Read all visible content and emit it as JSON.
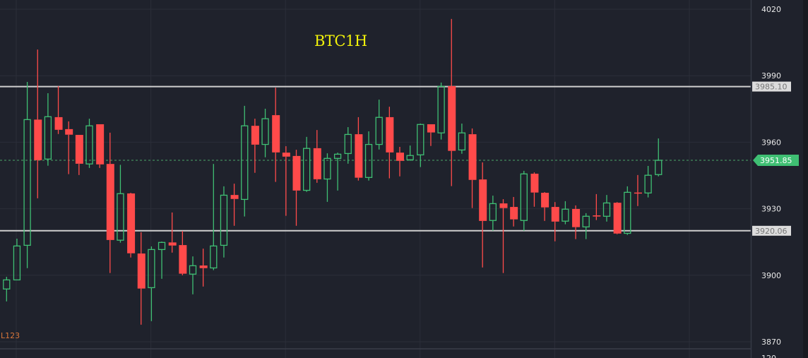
{
  "chart_data": {
    "type": "candlestick",
    "title": "BTC1H",
    "study_label": "L123",
    "sub_panel_tick": "120",
    "yticks": [
      4020,
      3990,
      3960,
      3930,
      3900,
      3870
    ],
    "ylim": [
      3866,
      4024
    ],
    "grid": true,
    "colors": {
      "background": "#1f222c",
      "up": "#3fbf73",
      "down": "#ff4a4a",
      "grid": "#2b2e39",
      "level_line": "#cfcfcf",
      "title": "#f2f20a",
      "study": "#d9763a",
      "last_price": "#3fbf73"
    },
    "levels": [
      {
        "value": 3985.1,
        "label": "3985.10"
      },
      {
        "value": 3920.06,
        "label": "3920.06"
      }
    ],
    "last_price": {
      "value": 3951.85,
      "label": "3951.85"
    },
    "candles": [
      [
        3893.8,
        3899.3,
        3888.2,
        3897.9
      ],
      [
        3897.9,
        3916.5,
        3897.9,
        3913.2
      ],
      [
        3913.5,
        3987.2,
        3903.2,
        3970.2
      ],
      [
        3970.2,
        4001.8,
        3934.7,
        3951.9
      ],
      [
        3952.4,
        3982.1,
        3949.4,
        3971.5
      ],
      [
        3971.3,
        3985.3,
        3963.7,
        3965.6
      ],
      [
        3965.9,
        3969.4,
        3945.6,
        3963.4
      ],
      [
        3963.3,
        3963.3,
        3945.2,
        3950.3
      ],
      [
        3950.2,
        3970.6,
        3948.4,
        3967.4
      ],
      [
        3968.1,
        3968.1,
        3948.4,
        3950.0
      ],
      [
        3950.2,
        3964.3,
        3901.0,
        3915.9
      ],
      [
        3915.8,
        3949.8,
        3914.7,
        3936.8
      ],
      [
        3936.9,
        3937.2,
        3908.0,
        3909.9
      ],
      [
        3909.8,
        3919.4,
        3877.7,
        3894.0
      ],
      [
        3894.4,
        3913.0,
        3879.3,
        3911.6
      ],
      [
        3911.6,
        3915.2,
        3898.4,
        3914.8
      ],
      [
        3914.8,
        3928.3,
        3910.2,
        3913.4
      ],
      [
        3913.6,
        3920.0,
        3900.0,
        3900.7
      ],
      [
        3900.5,
        3908.5,
        3891.4,
        3904.3
      ],
      [
        3904.4,
        3912.0,
        3894.9,
        3903.2
      ],
      [
        3903.3,
        3950.2,
        3902.3,
        3913.2
      ],
      [
        3913.5,
        3940.1,
        3908.0,
        3936.1
      ],
      [
        3936.2,
        3941.3,
        3922.3,
        3934.4
      ],
      [
        3934.2,
        3976.4,
        3926.5,
        3967.4
      ],
      [
        3967.4,
        3970.6,
        3946.2,
        3958.9
      ],
      [
        3959.0,
        3975.1,
        3953.2,
        3970.6
      ],
      [
        3972.2,
        3984.6,
        3942.1,
        3955.4
      ],
      [
        3955.3,
        3958.2,
        3926.8,
        3953.5
      ],
      [
        3953.8,
        3956.6,
        3922.3,
        3938.2
      ],
      [
        3938.3,
        3962.4,
        3937.6,
        3957.2
      ],
      [
        3957.3,
        3965.5,
        3941.7,
        3943.3
      ],
      [
        3943.4,
        3955.0,
        3933.1,
        3952.7
      ],
      [
        3952.7,
        3955.3,
        3938.2,
        3954.6
      ],
      [
        3954.9,
        3966.8,
        3950.3,
        3963.5
      ],
      [
        3963.6,
        3971.3,
        3942.7,
        3944.0
      ],
      [
        3944.1,
        3964.9,
        3942.7,
        3959.0
      ],
      [
        3959.0,
        3979.2,
        3956.7,
        3971.2
      ],
      [
        3971.3,
        3976.0,
        3943.7,
        3955.4
      ],
      [
        3955.3,
        3957.9,
        3944.6,
        3951.6
      ],
      [
        3952.1,
        3958.5,
        3951.6,
        3954.0
      ],
      [
        3954.3,
        3968.4,
        3948.8,
        3968.0
      ],
      [
        3968.1,
        3968.1,
        3958.3,
        3964.4
      ],
      [
        3964.2,
        3986.9,
        3961.2,
        3985.2
      ],
      [
        3985.3,
        4015.6,
        3940.2,
        3956.1
      ],
      [
        3956.5,
        3968.4,
        3954.8,
        3964.2
      ],
      [
        3963.6,
        3966.2,
        3930.3,
        3943.0
      ],
      [
        3943.2,
        3950.9,
        3903.5,
        3924.5
      ],
      [
        3924.7,
        3935.9,
        3920.1,
        3932.3
      ],
      [
        3932.4,
        3934.3,
        3901.0,
        3930.3
      ],
      [
        3930.8,
        3935.3,
        3922.0,
        3925.2
      ],
      [
        3924.7,
        3947.1,
        3920.1,
        3945.7
      ],
      [
        3945.8,
        3946.4,
        3930.9,
        3937.3
      ],
      [
        3937.2,
        3937.5,
        3924.5,
        3930.6
      ],
      [
        3930.8,
        3933.0,
        3915.3,
        3924.2
      ],
      [
        3924.4,
        3933.4,
        3923.0,
        3929.8
      ],
      [
        3929.9,
        3931.5,
        3916.3,
        3921.7
      ],
      [
        3921.8,
        3928.0,
        3916.3,
        3926.6
      ],
      [
        3927.0,
        3936.6,
        3924.9,
        3926.5
      ],
      [
        3926.6,
        3936.2,
        3924.2,
        3932.6
      ],
      [
        3932.7,
        3933.0,
        3918.5,
        3918.8
      ],
      [
        3918.9,
        3940.1,
        3918.2,
        3937.4
      ],
      [
        3937.3,
        3945.2,
        3931.2,
        3937.0
      ],
      [
        3937.1,
        3949.3,
        3935.1,
        3945.1
      ],
      [
        3945.4,
        3961.7,
        3944.6,
        3951.85
      ]
    ],
    "candle_fields": [
      "open",
      "high",
      "low",
      "close"
    ]
  }
}
